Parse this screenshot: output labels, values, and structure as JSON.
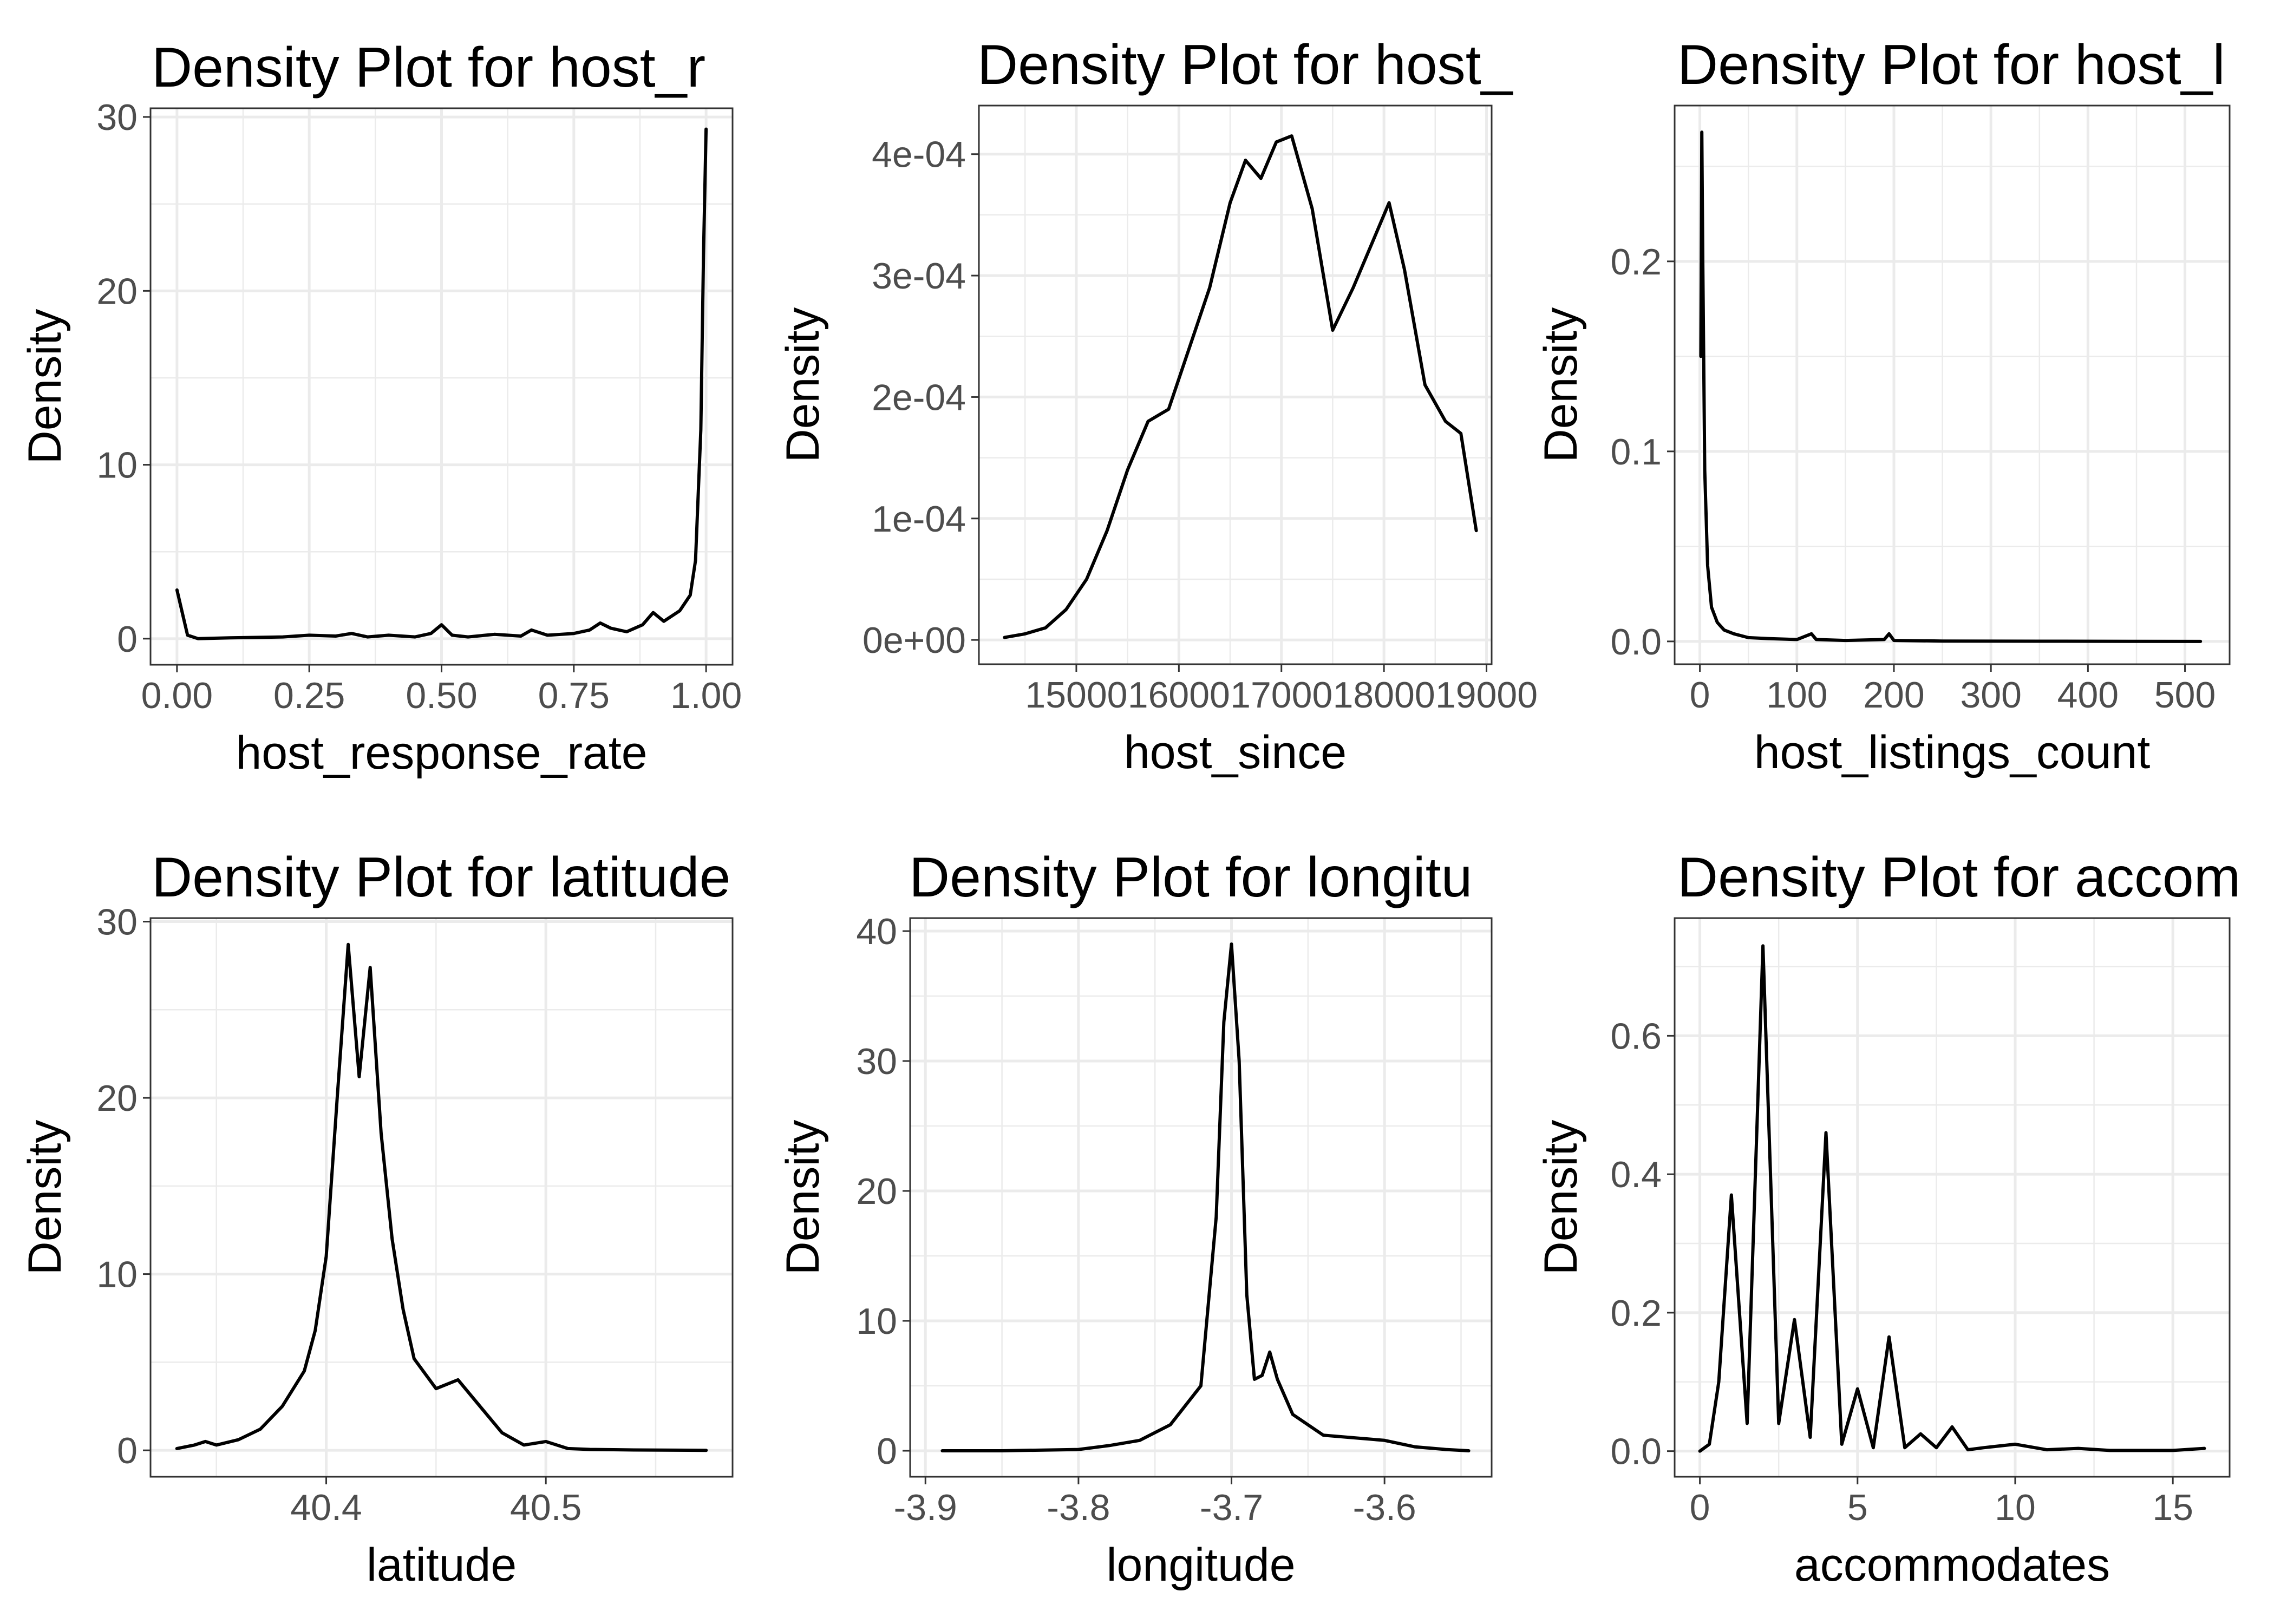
{
  "chart_data": [
    {
      "type": "line",
      "title": "Density Plot for  host_r",
      "xlabel": "host_response_rate",
      "ylabel": "Density",
      "xlim": [
        -0.05,
        1.05
      ],
      "ylim": [
        -1.5,
        30.5
      ],
      "x_ticks": [
        0,
        0.25,
        0.5,
        0.75,
        1
      ],
      "x_tick_labels": [
        "0.00",
        "0.25",
        "0.50",
        "0.75",
        "1.00"
      ],
      "y_ticks": [
        0,
        10,
        20,
        30
      ],
      "y_tick_labels": [
        "0",
        "10",
        "20",
        "30"
      ],
      "grid": true,
      "series": [
        {
          "x": [
            0.0,
            0.01,
            0.02,
            0.04,
            0.1,
            0.2,
            0.25,
            0.3,
            0.33,
            0.36,
            0.4,
            0.45,
            0.48,
            0.5,
            0.52,
            0.55,
            0.6,
            0.65,
            0.67,
            0.7,
            0.75,
            0.78,
            0.8,
            0.82,
            0.85,
            0.88,
            0.9,
            0.92,
            0.95,
            0.97,
            0.98,
            0.99,
            0.995,
            1.0
          ],
          "y": [
            2.8,
            1.5,
            0.2,
            0.0,
            0.05,
            0.1,
            0.2,
            0.15,
            0.3,
            0.1,
            0.2,
            0.1,
            0.3,
            0.8,
            0.2,
            0.1,
            0.25,
            0.15,
            0.5,
            0.2,
            0.3,
            0.5,
            0.9,
            0.6,
            0.4,
            0.8,
            1.5,
            1.0,
            1.6,
            2.5,
            4.5,
            12.0,
            22.0,
            29.3
          ]
        }
      ]
    },
    {
      "type": "line",
      "title": "Density Plot for  host_",
      "xlabel": "host_since",
      "ylabel": "Density",
      "xlim": [
        14050,
        19050
      ],
      "ylim": [
        -2e-05,
        0.00044
      ],
      "x_ticks": [
        15000,
        16000,
        17000,
        18000,
        19000
      ],
      "x_tick_labels": [
        "15000",
        "16000",
        "17000",
        "18000",
        "19000"
      ],
      "y_ticks": [
        0,
        0.0001,
        0.0002,
        0.0003,
        0.0004
      ],
      "y_tick_labels": [
        "0e+00",
        "1e-04",
        "2e-04",
        "3e-04",
        "4e-04"
      ],
      "grid": true,
      "series": [
        {
          "x": [
            14300,
            14500,
            14700,
            14900,
            15100,
            15300,
            15500,
            15700,
            15900,
            16100,
            16300,
            16500,
            16650,
            16800,
            16950,
            17100,
            17300,
            17500,
            17700,
            17900,
            18050,
            18200,
            18400,
            18600,
            18750,
            18900
          ],
          "y": [
            2e-06,
            5e-06,
            1e-05,
            2.5e-05,
            5e-05,
            9e-05,
            0.00014,
            0.00018,
            0.00019,
            0.00024,
            0.00029,
            0.00036,
            0.000395,
            0.00038,
            0.00041,
            0.000415,
            0.000355,
            0.000255,
            0.00029,
            0.00033,
            0.00036,
            0.000305,
            0.00021,
            0.00018,
            0.00017,
            9e-05
          ]
        }
      ]
    },
    {
      "type": "line",
      "title": "Density Plot for  host_l",
      "xlabel": "host_listings_count",
      "ylabel": "Density",
      "xlim": [
        -26,
        546
      ],
      "ylim": [
        -0.012,
        0.282
      ],
      "x_ticks": [
        0,
        100,
        200,
        300,
        400,
        500
      ],
      "x_tick_labels": [
        "0",
        "100",
        "200",
        "300",
        "400",
        "500"
      ],
      "y_ticks": [
        0,
        0.1,
        0.2
      ],
      "y_tick_labels": [
        "0.0",
        "0.1",
        "0.2"
      ],
      "grid": true,
      "series": [
        {
          "x": [
            1,
            2,
            3,
            5,
            8,
            12,
            18,
            25,
            35,
            50,
            70,
            100,
            115,
            120,
            150,
            190,
            195,
            200,
            250,
            350,
            450,
            516
          ],
          "y": [
            0.15,
            0.268,
            0.2,
            0.09,
            0.04,
            0.018,
            0.01,
            0.006,
            0.004,
            0.002,
            0.0015,
            0.001,
            0.004,
            0.001,
            0.0005,
            0.001,
            0.004,
            0.0005,
            0.0002,
            0.0001,
            5e-05,
            0.0
          ]
        }
      ]
    },
    {
      "type": "line",
      "title": "Density Plot for  latitude",
      "xlabel": "latitude",
      "ylabel": "Density",
      "xlim": [
        40.32,
        40.585
      ],
      "ylim": [
        -1.5,
        30.2
      ],
      "x_ticks": [
        40.4,
        40.5
      ],
      "x_tick_labels": [
        "40.4",
        "40.5"
      ],
      "y_ticks": [
        0,
        10,
        20,
        30
      ],
      "y_tick_labels": [
        "0",
        "10",
        "20",
        "30"
      ],
      "grid": true,
      "series": [
        {
          "x": [
            40.332,
            40.34,
            40.345,
            40.35,
            40.36,
            40.37,
            40.38,
            40.39,
            40.395,
            40.4,
            40.405,
            40.41,
            40.415,
            40.42,
            40.425,
            40.43,
            40.435,
            40.44,
            40.45,
            40.46,
            40.47,
            40.48,
            40.49,
            40.5,
            40.51,
            40.52,
            40.54,
            40.573
          ],
          "y": [
            0.1,
            0.3,
            0.5,
            0.3,
            0.6,
            1.2,
            2.5,
            4.5,
            6.8,
            11.0,
            20.0,
            28.7,
            21.2,
            27.4,
            18.0,
            12.0,
            8.0,
            5.2,
            3.5,
            4.0,
            2.5,
            1.0,
            0.3,
            0.5,
            0.1,
            0.05,
            0.02,
            0.0
          ]
        }
      ]
    },
    {
      "type": "line",
      "title": "Density Plot for  longitu",
      "xlabel": "longitude",
      "ylabel": "Density",
      "xlim": [
        -3.91,
        -3.53
      ],
      "ylim": [
        -2,
        41
      ],
      "x_ticks": [
        -3.9,
        -3.8,
        -3.7,
        -3.6
      ],
      "x_tick_labels": [
        "-3.9",
        "-3.8",
        "-3.7",
        "-3.6"
      ],
      "y_ticks": [
        0,
        10,
        20,
        30,
        40
      ],
      "y_tick_labels": [
        "0",
        "10",
        "20",
        "30",
        "40"
      ],
      "grid": true,
      "series": [
        {
          "x": [
            -3.889,
            -3.85,
            -3.8,
            -3.78,
            -3.76,
            -3.74,
            -3.72,
            -3.71,
            -3.705,
            -3.7,
            -3.695,
            -3.69,
            -3.685,
            -3.68,
            -3.675,
            -3.67,
            -3.66,
            -3.65,
            -3.64,
            -3.62,
            -3.6,
            -3.58,
            -3.56,
            -3.545
          ],
          "y": [
            0.0,
            0.0,
            0.1,
            0.4,
            0.8,
            2.0,
            5.0,
            18.0,
            33.0,
            39.0,
            30.0,
            12.0,
            5.5,
            5.8,
            7.6,
            5.5,
            2.8,
            2.0,
            1.2,
            1.0,
            0.8,
            0.3,
            0.1,
            0.0
          ]
        }
      ]
    },
    {
      "type": "line",
      "title": "Density Plot for  accom",
      "xlabel": "accommodates",
      "ylabel": "Density",
      "xlim": [
        -0.8,
        16.8
      ],
      "ylim": [
        -0.037,
        0.77
      ],
      "x_ticks": [
        0,
        5,
        10,
        15
      ],
      "x_tick_labels": [
        "0",
        "5",
        "10",
        "15"
      ],
      "y_ticks": [
        0,
        0.2,
        0.4,
        0.6
      ],
      "y_tick_labels": [
        "0.0",
        "0.2",
        "0.4",
        "0.6"
      ],
      "grid": true,
      "series": [
        {
          "x": [
            0.0,
            0.3,
            0.6,
            1.0,
            1.5,
            2.0,
            2.5,
            3.0,
            3.5,
            4.0,
            4.5,
            5.0,
            5.5,
            6.0,
            6.5,
            7.0,
            7.5,
            8.0,
            8.5,
            9.0,
            10.0,
            11.0,
            12.0,
            13.0,
            14.0,
            15.0,
            16.0
          ],
          "y": [
            0.0,
            0.01,
            0.1,
            0.37,
            0.04,
            0.73,
            0.04,
            0.19,
            0.02,
            0.46,
            0.01,
            0.09,
            0.005,
            0.165,
            0.005,
            0.025,
            0.005,
            0.035,
            0.002,
            0.005,
            0.01,
            0.002,
            0.004,
            0.001,
            0.001,
            0.001,
            0.004
          ]
        }
      ]
    }
  ]
}
